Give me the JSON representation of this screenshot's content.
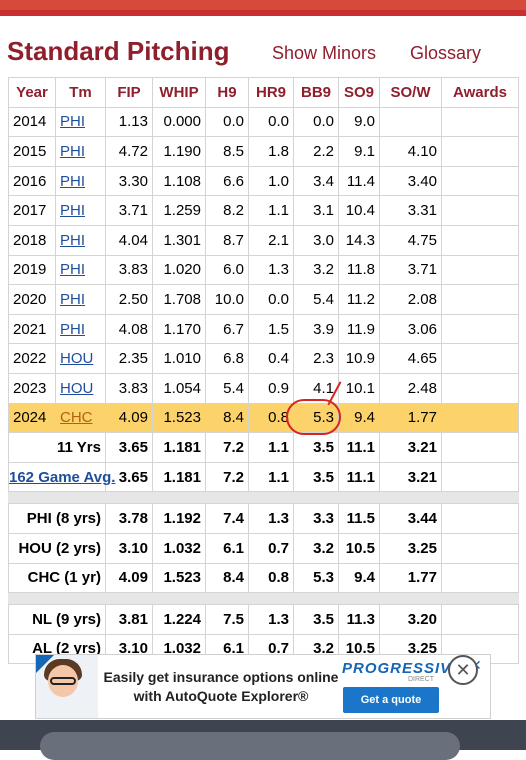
{
  "page": {
    "title": "Standard Pitching",
    "show_minors": "Show Minors",
    "glossary": "Glossary"
  },
  "table": {
    "headers": [
      "Year",
      "Tm",
      "FIP",
      "WHIP",
      "H9",
      "HR9",
      "BB9",
      "SO9",
      "SO/W",
      "Awards"
    ],
    "rows": [
      {
        "year": "2014",
        "tm": "PHI",
        "fip": "1.13",
        "whip": "0.000",
        "h9": "0.0",
        "hr9": "0.0",
        "bb9": "0.0",
        "so9": "9.0",
        "sow": "",
        "awards": ""
      },
      {
        "year": "2015",
        "tm": "PHI",
        "fip": "4.72",
        "whip": "1.190",
        "h9": "8.5",
        "hr9": "1.8",
        "bb9": "2.2",
        "so9": "9.1",
        "sow": "4.10",
        "awards": ""
      },
      {
        "year": "2016",
        "tm": "PHI",
        "fip": "3.30",
        "whip": "1.108",
        "h9": "6.6",
        "hr9": "1.0",
        "bb9": "3.4",
        "so9": "11.4",
        "sow": "3.40",
        "awards": ""
      },
      {
        "year": "2017",
        "tm": "PHI",
        "fip": "3.71",
        "whip": "1.259",
        "h9": "8.2",
        "hr9": "1.1",
        "bb9": "3.1",
        "so9": "10.4",
        "sow": "3.31",
        "awards": ""
      },
      {
        "year": "2018",
        "tm": "PHI",
        "fip": "4.04",
        "whip": "1.301",
        "h9": "8.7",
        "hr9": "2.1",
        "bb9": "3.0",
        "so9": "14.3",
        "sow": "4.75",
        "awards": ""
      },
      {
        "year": "2019",
        "tm": "PHI",
        "fip": "3.83",
        "whip": "1.020",
        "h9": "6.0",
        "hr9": "1.3",
        "bb9": "3.2",
        "so9": "11.8",
        "sow": "3.71",
        "awards": ""
      },
      {
        "year": "2020",
        "tm": "PHI",
        "fip": "2.50",
        "whip": "1.708",
        "h9": "10.0",
        "hr9": "0.0",
        "bb9": "5.4",
        "so9": "11.2",
        "sow": "2.08",
        "awards": ""
      },
      {
        "year": "2021",
        "tm": "PHI",
        "fip": "4.08",
        "whip": "1.170",
        "h9": "6.7",
        "hr9": "1.5",
        "bb9": "3.9",
        "so9": "11.9",
        "sow": "3.06",
        "awards": ""
      },
      {
        "year": "2022",
        "tm": "HOU",
        "fip": "2.35",
        "whip": "1.010",
        "h9": "6.8",
        "hr9": "0.4",
        "bb9": "2.3",
        "so9": "10.9",
        "sow": "4.65",
        "awards": ""
      },
      {
        "year": "2023",
        "tm": "HOU",
        "fip": "3.83",
        "whip": "1.054",
        "h9": "5.4",
        "hr9": "0.9",
        "bb9": "4.1",
        "so9": "10.1",
        "sow": "2.48",
        "awards": ""
      },
      {
        "year": "2024",
        "tm": "CHC",
        "fip": "4.09",
        "whip": "1.523",
        "h9": "8.4",
        "hr9": "0.8",
        "bb9": "5.3",
        "so9": "9.4",
        "sow": "1.77",
        "awards": ""
      }
    ],
    "summary_top": [
      {
        "label": "11 Yrs",
        "fip": "3.65",
        "whip": "1.181",
        "h9": "7.2",
        "hr9": "1.1",
        "bb9": "3.5",
        "so9": "11.1",
        "sow": "3.21"
      },
      {
        "label": "162 Game Avg.",
        "fip": "3.65",
        "whip": "1.181",
        "h9": "7.2",
        "hr9": "1.1",
        "bb9": "3.5",
        "so9": "11.1",
        "sow": "3.21"
      }
    ],
    "summary_teams": [
      {
        "label": "PHI (8 yrs)",
        "fip": "3.78",
        "whip": "1.192",
        "h9": "7.4",
        "hr9": "1.3",
        "bb9": "3.3",
        "so9": "11.5",
        "sow": "3.44"
      },
      {
        "label": "HOU (2 yrs)",
        "fip": "3.10",
        "whip": "1.032",
        "h9": "6.1",
        "hr9": "0.7",
        "bb9": "3.2",
        "so9": "10.5",
        "sow": "3.25"
      },
      {
        "label": "CHC (1 yr)",
        "fip": "4.09",
        "whip": "1.523",
        "h9": "8.4",
        "hr9": "0.8",
        "bb9": "5.3",
        "so9": "9.4",
        "sow": "1.77"
      }
    ],
    "summary_leagues": [
      {
        "label": "NL (9 yrs)",
        "fip": "3.81",
        "whip": "1.224",
        "h9": "7.5",
        "hr9": "1.3",
        "bb9": "3.5",
        "so9": "11.3",
        "sow": "3.20"
      },
      {
        "label": "AL (2 yrs)",
        "fip": "3.10",
        "whip": "1.032",
        "h9": "6.1",
        "hr9": "0.7",
        "bb9": "3.2",
        "so9": "10.5",
        "sow": "3.25"
      }
    ]
  },
  "ad": {
    "headline": "Easily get insurance options online with AutoQuote Explorer®",
    "brand": "PROGRESSIVE",
    "brand_sub": "DIRECT",
    "cta": "Get a quote",
    "close_glyph": "✕",
    "dismiss_glyph": "✕"
  },
  "colors": {
    "title": "#8f1f2d",
    "link": "#1f4e9d",
    "highlight_row": "#fcd26a",
    "annotation": "#d8241f",
    "ad_brand": "#1566b7"
  }
}
